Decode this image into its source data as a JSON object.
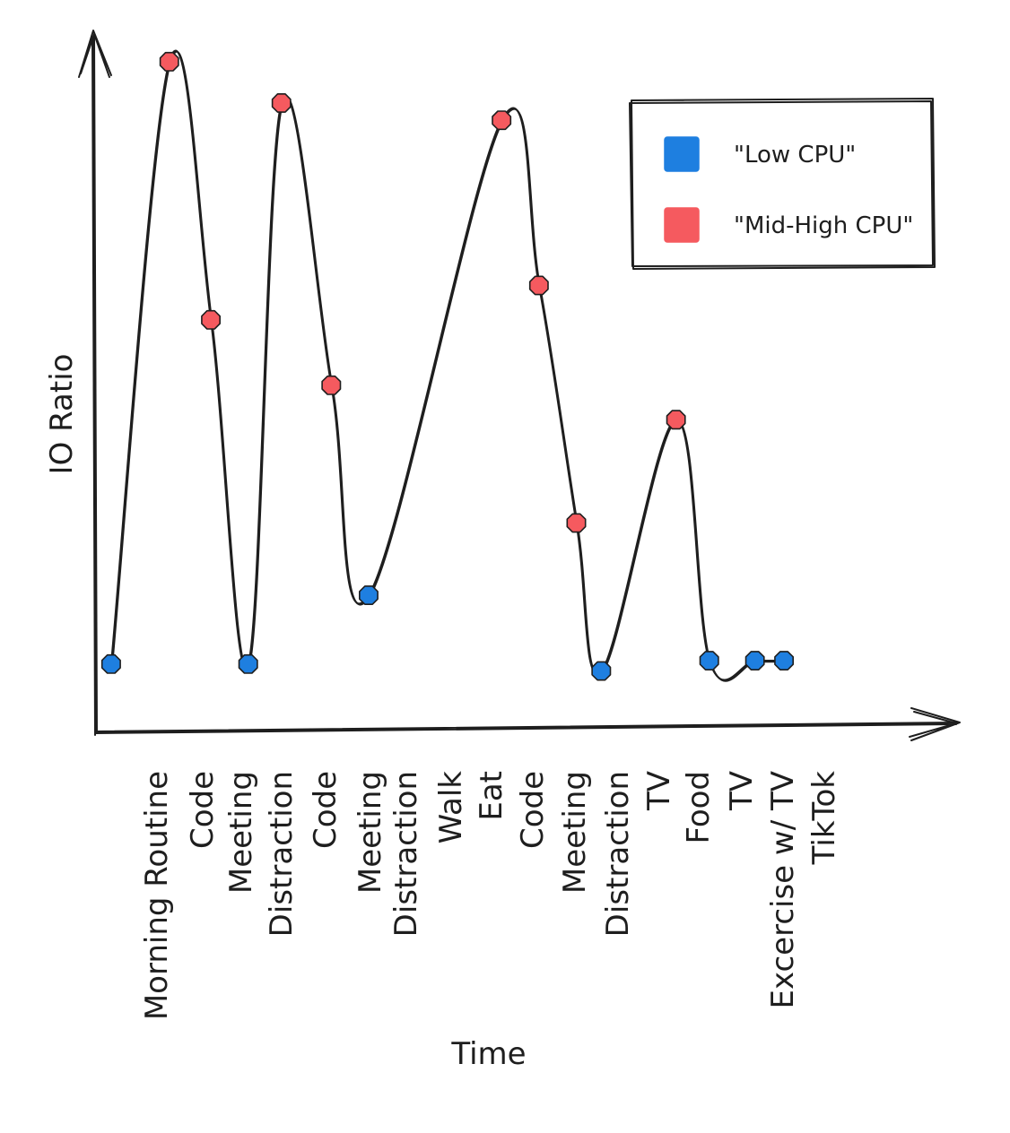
{
  "chart_data": {
    "type": "line",
    "title": "",
    "xlabel": "Time",
    "ylabel": "IO Ratio",
    "categories": [
      "Morning Routine",
      "Code",
      "Meeting",
      "Distraction",
      "Code",
      "Meeting",
      "Distraction",
      "Walk",
      "Eat",
      "Code",
      "Meeting",
      "Distraction",
      "TV",
      "Food",
      "TV",
      "Excercise w/ TV",
      "TikTok"
    ],
    "points": [
      {
        "x": 0,
        "y": 0.9,
        "cpu": "low"
      },
      {
        "x": 1.4,
        "y": 9.65,
        "cpu": "mid-high"
      },
      {
        "x": 2.4,
        "y": 5.9,
        "cpu": "mid-high"
      },
      {
        "x": 3.3,
        "y": 0.9,
        "cpu": "low"
      },
      {
        "x": 4.1,
        "y": 9.05,
        "cpu": "mid-high"
      },
      {
        "x": 5.3,
        "y": 4.95,
        "cpu": "mid-high"
      },
      {
        "x": 6.2,
        "y": 1.9,
        "cpu": "low"
      },
      {
        "x": 9.4,
        "y": 8.8,
        "cpu": "mid-high"
      },
      {
        "x": 10.3,
        "y": 6.4,
        "cpu": "mid-high"
      },
      {
        "x": 11.2,
        "y": 2.95,
        "cpu": "mid-high"
      },
      {
        "x": 11.8,
        "y": 0.8,
        "cpu": "low"
      },
      {
        "x": 13.6,
        "y": 4.45,
        "cpu": "mid-high"
      },
      {
        "x": 14.4,
        "y": 0.95,
        "cpu": "low"
      },
      {
        "x": 15.5,
        "y": 0.95,
        "cpu": "low"
      },
      {
        "x": 16.2,
        "y": 0.95,
        "cpu": "low"
      }
    ],
    "xlim": [
      -0.3,
      20.0
    ],
    "ylim": [
      0,
      10
    ],
    "grid": false,
    "legend": {
      "placement": "top-right",
      "entries": [
        {
          "label": "\"Low CPU\"",
          "color": "#1e7fe0"
        },
        {
          "label": "\"Mid-High CPU\"",
          "color": "#f55a5f"
        }
      ]
    },
    "colors": {
      "low": "#1e7fe0",
      "mid-high": "#f55a5f",
      "ink": "#1e1e1e"
    }
  }
}
